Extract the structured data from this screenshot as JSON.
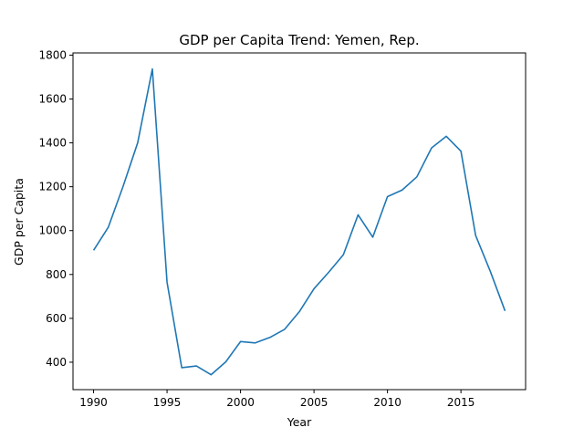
{
  "chart_data": {
    "type": "line",
    "title": "GDP per Capita Trend: Yemen, Rep.",
    "xlabel": "Year",
    "ylabel": "GDP per Capita",
    "xlim": [
      1988.6,
      2019.4
    ],
    "ylim": [
      275,
      1810
    ],
    "xticks": [
      1990,
      1995,
      2000,
      2005,
      2010,
      2015
    ],
    "yticks": [
      400,
      600,
      800,
      1000,
      1200,
      1400,
      1600,
      1800
    ],
    "grid": false,
    "series": [
      {
        "color": "#1f77b4",
        "x": [
          1990,
          1991,
          1992,
          1993,
          1994,
          1995,
          1996,
          1997,
          1998,
          1999,
          2000,
          2001,
          2002,
          2003,
          2004,
          2005,
          2006,
          2007,
          2008,
          2009,
          2010,
          2011,
          2012,
          2013,
          2014,
          2015,
          2016,
          2017,
          2018
        ],
        "y": [
          910,
          1015,
          1200,
          1400,
          1737,
          765,
          375,
          383,
          343,
          402,
          494,
          488,
          513,
          550,
          630,
          735,
          810,
          890,
          1072,
          970,
          1155,
          1185,
          1245,
          1377,
          1430,
          1362,
          978,
          814,
          634
        ]
      }
    ]
  }
}
